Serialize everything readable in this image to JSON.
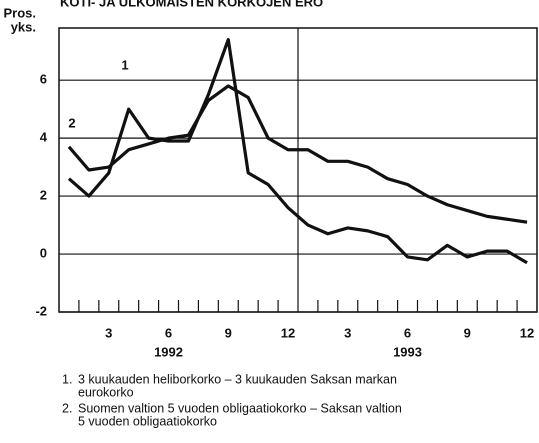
{
  "chart_data": {
    "type": "line",
    "title": "KOTI- JA ULKOMAISTEN KORKOJEN ERO",
    "y_label": [
      "Pros.",
      "yks."
    ],
    "categories": [
      null,
      null,
      "3",
      null,
      null,
      "6",
      null,
      null,
      "9",
      null,
      null,
      "12",
      null,
      null,
      "3",
      null,
      null,
      "6",
      null,
      null,
      "9",
      null,
      null,
      "12"
    ],
    "year_labels": [
      "1992",
      "1993"
    ],
    "series": [
      {
        "name": "1",
        "color": "#111111",
        "values": [
          2.6,
          2.0,
          2.8,
          5.0,
          4.0,
          3.9,
          3.9,
          5.5,
          7.4,
          2.8,
          2.4,
          1.6,
          1.0,
          0.7,
          0.9,
          0.8,
          0.6,
          -0.1,
          -0.2,
          0.3,
          -0.1,
          0.1,
          0.1,
          -0.3
        ]
      },
      {
        "name": "2",
        "color": "#111111",
        "values": [
          3.7,
          2.9,
          3.0,
          3.6,
          3.8,
          4.0,
          4.1,
          5.3,
          5.8,
          5.4,
          4.0,
          3.6,
          3.6,
          3.2,
          3.2,
          3.0,
          2.6,
          2.4,
          2.0,
          1.7,
          1.5,
          1.3,
          1.2,
          1.1
        ]
      }
    ],
    "ylim": [
      -2,
      7.8
    ],
    "yticks": [
      -2,
      0,
      2,
      4,
      6
    ],
    "grid": true,
    "notes": [
      {
        "marker": "1.",
        "lines": [
          "3 kuukauden heliborkorko – 3 kuukauden Saksan markan",
          "eurokorko"
        ]
      },
      {
        "marker": "2.",
        "lines": [
          "Suomen valtion 5 vuoden obligaatiokorko – Saksan valtion",
          "5 vuoden obligaatiokorko"
        ]
      }
    ]
  }
}
